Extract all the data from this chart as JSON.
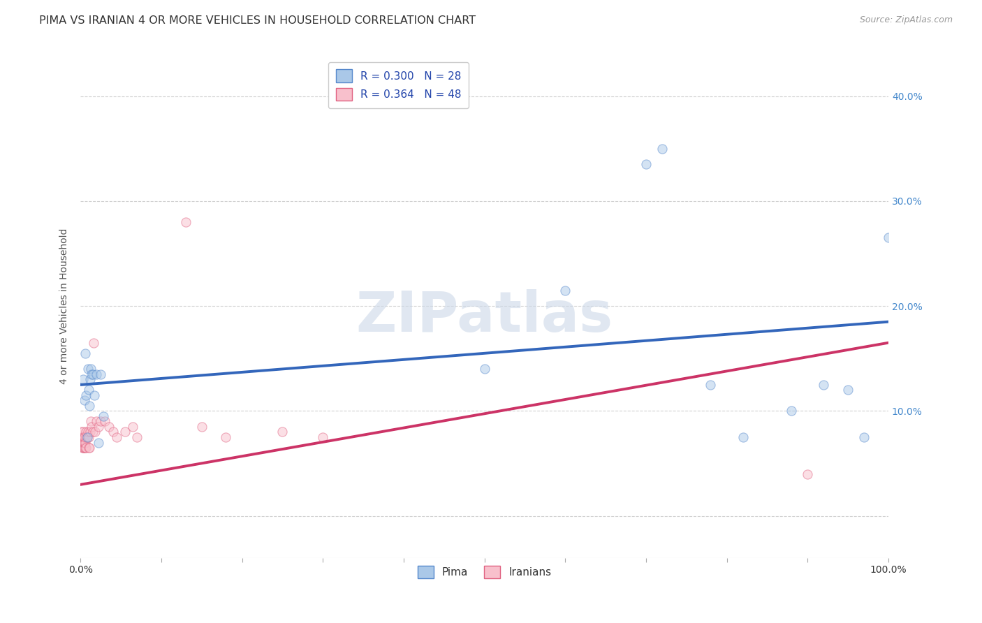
{
  "title": "PIMA VS IRANIAN 4 OR MORE VEHICLES IN HOUSEHOLD CORRELATION CHART",
  "source": "Source: ZipAtlas.com",
  "ylabel": "4 or more Vehicles in Household",
  "xlim": [
    0.0,
    1.0
  ],
  "ylim": [
    -0.04,
    0.44
  ],
  "yticks": [
    0.0,
    0.1,
    0.2,
    0.3,
    0.4
  ],
  "xticks": [
    0.0,
    0.1,
    0.2,
    0.3,
    0.4,
    0.5,
    0.6,
    0.7,
    0.8,
    0.9,
    1.0
  ],
  "xtick_labels": [
    "0.0%",
    "",
    "",
    "",
    "",
    "",
    "",
    "",
    "",
    "",
    "100.0%"
  ],
  "ytick_labels_right": [
    "",
    "10.0%",
    "20.0%",
    "30.0%",
    "40.0%"
  ],
  "grid_color": "#cccccc",
  "background_color": "#ffffff",
  "watermark": "ZIPatlas",
  "pima_color": "#aac8e8",
  "pima_edge_color": "#5588cc",
  "iranians_color": "#f8c0cc",
  "iranians_edge_color": "#e06080",
  "pima_line_color": "#3366bb",
  "iranians_line_color": "#cc3366",
  "legend_pima_label": "R = 0.300   N = 28",
  "legend_iranians_label": "R = 0.364   N = 48",
  "title_fontsize": 11.5,
  "axis_label_fontsize": 10,
  "tick_fontsize": 10,
  "legend_fontsize": 11,
  "marker_size": 90,
  "marker_alpha": 0.5,
  "line_width": 2.8,
  "pima_x": [
    0.003,
    0.005,
    0.006,
    0.007,
    0.008,
    0.009,
    0.01,
    0.011,
    0.012,
    0.013,
    0.014,
    0.015,
    0.017,
    0.02,
    0.022,
    0.025,
    0.028,
    0.6,
    0.7,
    0.72,
    0.78,
    0.82,
    0.88,
    0.92,
    0.95,
    0.97,
    1.0,
    0.5
  ],
  "pima_y": [
    0.13,
    0.11,
    0.155,
    0.115,
    0.075,
    0.14,
    0.12,
    0.105,
    0.13,
    0.14,
    0.135,
    0.135,
    0.115,
    0.135,
    0.07,
    0.135,
    0.095,
    0.215,
    0.335,
    0.35,
    0.125,
    0.075,
    0.1,
    0.125,
    0.12,
    0.075,
    0.265,
    0.14
  ],
  "iranians_x": [
    0.001,
    0.001,
    0.001,
    0.002,
    0.002,
    0.002,
    0.003,
    0.003,
    0.003,
    0.003,
    0.004,
    0.004,
    0.004,
    0.005,
    0.005,
    0.005,
    0.006,
    0.006,
    0.007,
    0.007,
    0.007,
    0.008,
    0.009,
    0.01,
    0.01,
    0.011,
    0.012,
    0.013,
    0.014,
    0.015,
    0.016,
    0.018,
    0.02,
    0.022,
    0.025,
    0.03,
    0.035,
    0.04,
    0.045,
    0.055,
    0.065,
    0.07,
    0.13,
    0.15,
    0.18,
    0.25,
    0.3,
    0.9
  ],
  "iranians_y": [
    0.07,
    0.075,
    0.08,
    0.065,
    0.07,
    0.075,
    0.065,
    0.07,
    0.075,
    0.08,
    0.065,
    0.07,
    0.075,
    0.065,
    0.07,
    0.075,
    0.065,
    0.07,
    0.075,
    0.08,
    0.065,
    0.075,
    0.08,
    0.065,
    0.075,
    0.065,
    0.08,
    0.09,
    0.085,
    0.08,
    0.165,
    0.08,
    0.09,
    0.085,
    0.09,
    0.09,
    0.085,
    0.08,
    0.075,
    0.08,
    0.085,
    0.075,
    0.28,
    0.085,
    0.075,
    0.08,
    0.075,
    0.04
  ],
  "pima_trendline_x": [
    0.001,
    1.0
  ],
  "pima_trendline_y": [
    0.125,
    0.185
  ],
  "iranians_trendline_x": [
    0.001,
    1.0
  ],
  "iranians_trendline_y": [
    0.03,
    0.165
  ]
}
